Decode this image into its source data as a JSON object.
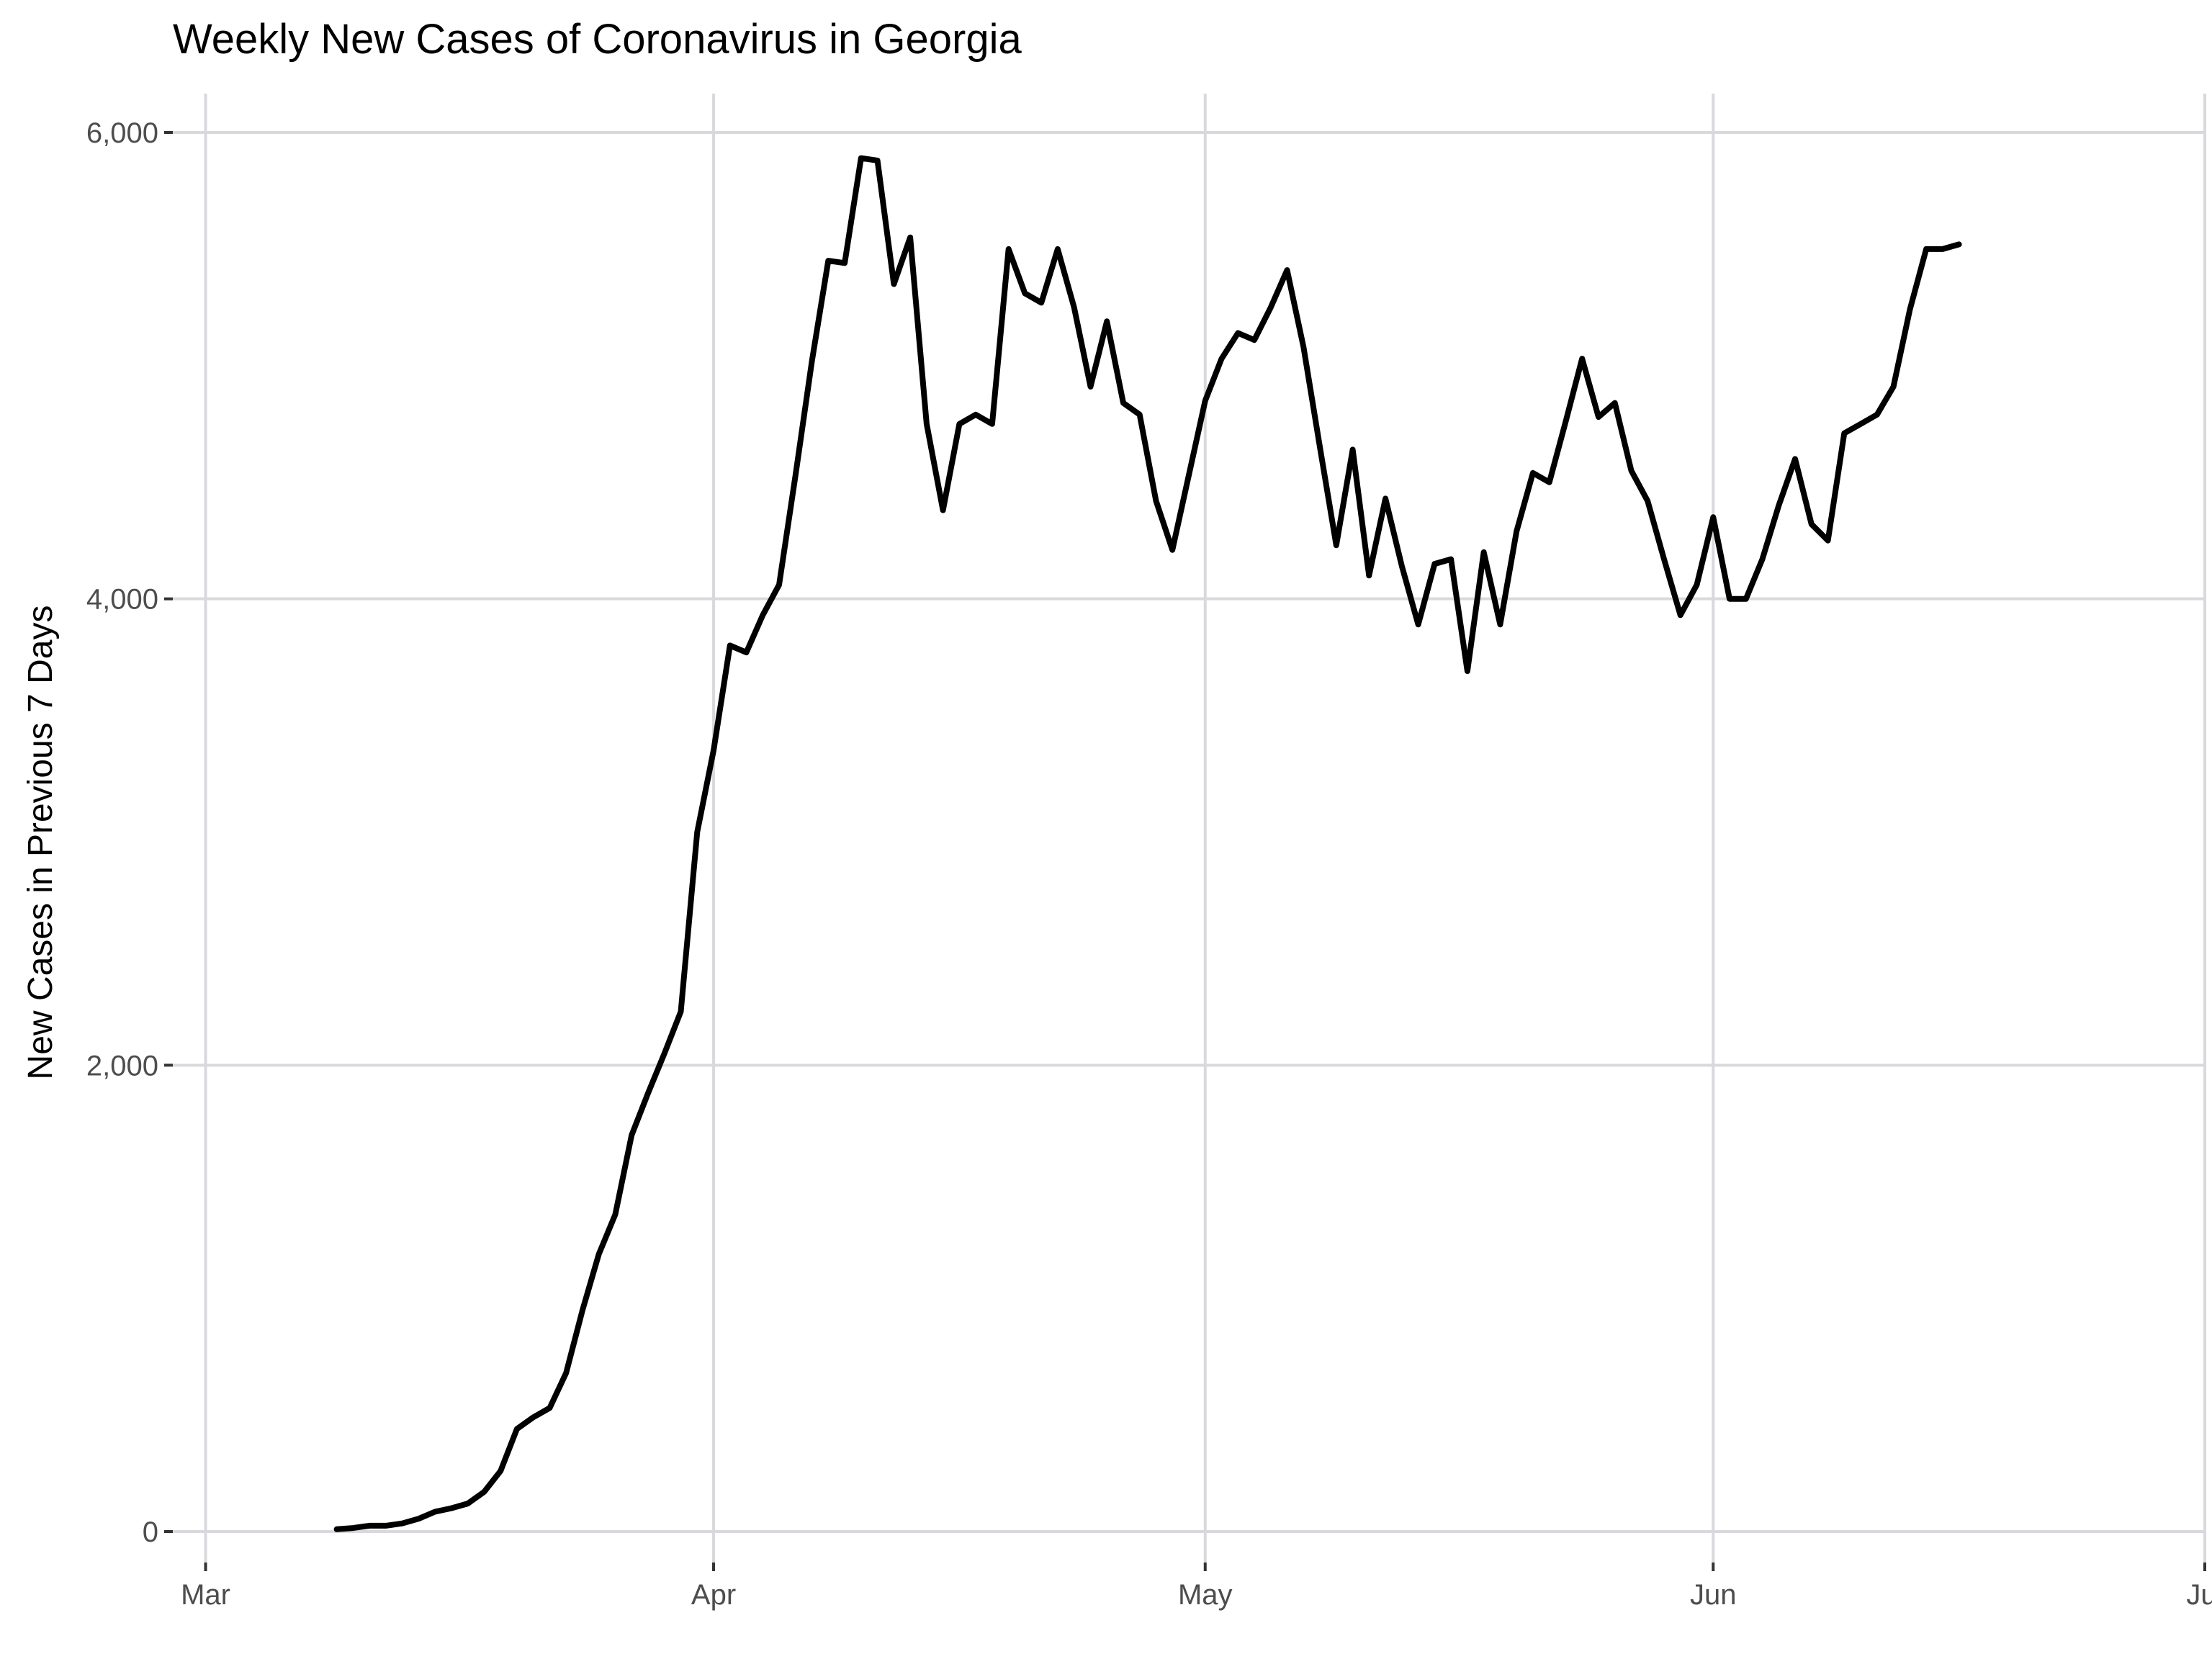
{
  "chart_data": {
    "type": "line",
    "title": "Weekly New Cases of Coronavirus in Georgia",
    "xlabel": "",
    "ylabel": "New Cases in Previous 7 Days",
    "xlim": [
      "2020-02-28",
      "2020-07-01"
    ],
    "ylim": [
      0,
      6000
    ],
    "grid": true,
    "legend": "none",
    "x_ticks": [
      {
        "date": "2020-03-01",
        "label": "Mar"
      },
      {
        "date": "2020-04-01",
        "label": "Apr"
      },
      {
        "date": "2020-05-01",
        "label": "May"
      },
      {
        "date": "2020-06-01",
        "label": "Jun"
      },
      {
        "date": "2020-07-01",
        "label": "Jul"
      }
    ],
    "y_ticks": [
      {
        "value": 0,
        "label": "0"
      },
      {
        "value": 2000,
        "label": "2,000"
      },
      {
        "value": 4000,
        "label": "4,000"
      },
      {
        "value": 6000,
        "label": "6,000"
      }
    ],
    "series": [
      {
        "color": "#000000",
        "x": [
          "2020-03-09",
          "2020-03-10",
          "2020-03-11",
          "2020-03-12",
          "2020-03-13",
          "2020-03-14",
          "2020-03-15",
          "2020-03-16",
          "2020-03-17",
          "2020-03-18",
          "2020-03-19",
          "2020-03-20",
          "2020-03-21",
          "2020-03-22",
          "2020-03-23",
          "2020-03-24",
          "2020-03-25",
          "2020-03-26",
          "2020-03-27",
          "2020-03-28",
          "2020-03-29",
          "2020-03-30",
          "2020-03-31",
          "2020-04-01",
          "2020-04-02",
          "2020-04-03",
          "2020-04-04",
          "2020-04-05",
          "2020-04-06",
          "2020-04-07",
          "2020-04-08",
          "2020-04-09",
          "2020-04-10",
          "2020-04-11",
          "2020-04-12",
          "2020-04-13",
          "2020-04-14",
          "2020-04-15",
          "2020-04-16",
          "2020-04-17",
          "2020-04-18",
          "2020-04-19",
          "2020-04-20",
          "2020-04-21",
          "2020-04-22",
          "2020-04-23",
          "2020-04-24",
          "2020-04-25",
          "2020-04-26",
          "2020-04-27",
          "2020-04-28",
          "2020-04-29",
          "2020-04-30",
          "2020-05-01",
          "2020-05-02",
          "2020-05-03",
          "2020-05-04",
          "2020-05-05",
          "2020-05-06",
          "2020-05-07",
          "2020-05-08",
          "2020-05-09",
          "2020-05-10",
          "2020-05-11",
          "2020-05-12",
          "2020-05-13",
          "2020-05-14",
          "2020-05-15",
          "2020-05-16",
          "2020-05-17",
          "2020-05-18",
          "2020-05-19",
          "2020-05-20",
          "2020-05-21",
          "2020-05-22",
          "2020-05-23",
          "2020-05-24",
          "2020-05-25",
          "2020-05-26",
          "2020-05-27",
          "2020-05-28",
          "2020-05-29",
          "2020-05-30",
          "2020-05-31",
          "2020-06-01",
          "2020-06-02",
          "2020-06-03",
          "2020-06-04",
          "2020-06-05",
          "2020-06-06",
          "2020-06-07",
          "2020-06-08",
          "2020-06-09",
          "2020-06-10",
          "2020-06-11",
          "2020-06-12",
          "2020-06-13",
          "2020-06-14",
          "2020-06-15",
          "2020-06-16"
        ],
        "y": [
          10,
          15,
          25,
          25,
          35,
          55,
          85,
          100,
          120,
          170,
          260,
          440,
          490,
          530,
          680,
          950,
          1190,
          1360,
          1700,
          1880,
          2050,
          2230,
          3000,
          3350,
          3800,
          3770,
          3930,
          4060,
          4530,
          5020,
          5450,
          5440,
          5890,
          5880,
          5350,
          5550,
          4750,
          4380,
          4750,
          4790,
          4750,
          5500,
          5310,
          5270,
          5500,
          5250,
          4910,
          5190,
          4840,
          4790,
          4420,
          4210,
          4530,
          4850,
          5030,
          5140,
          5110,
          5250,
          5410,
          5080,
          4650,
          4230,
          4640,
          4100,
          4430,
          4140,
          3890,
          4150,
          4170,
          3690,
          4200,
          3890,
          4290,
          4540,
          4500,
          4760,
          5030,
          4780,
          4840,
          4550,
          4420,
          4170,
          3930,
          4060,
          4350,
          4000,
          4000,
          4170,
          4400,
          4600,
          4320,
          4250,
          4710,
          4750,
          4790,
          4910,
          5240,
          5500,
          5500,
          5520
        ]
      }
    ]
  }
}
